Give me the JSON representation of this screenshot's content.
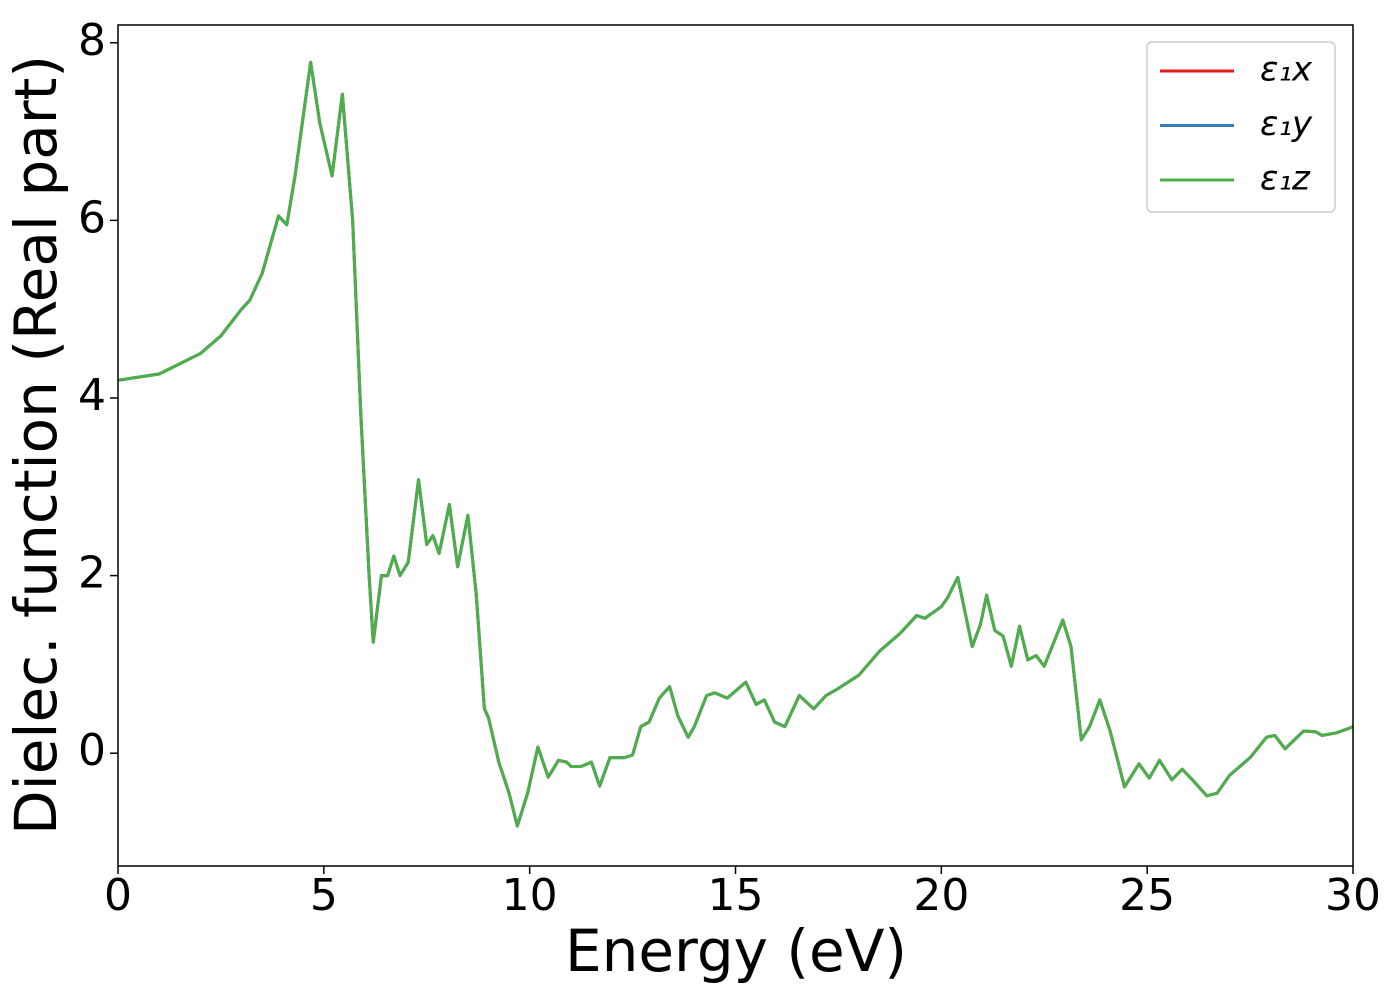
{
  "chart_data": {
    "type": "line",
    "xlabel": "Energy (eV)",
    "ylabel": "Dielec. function (Real part)",
    "xlim": [
      0,
      30
    ],
    "ylim": [
      -1.27,
      8.2
    ],
    "xticks": [
      0,
      5,
      10,
      15,
      20,
      25,
      30
    ],
    "yticks": [
      0,
      2,
      4,
      6,
      8
    ],
    "grid": false,
    "legend": "upper right",
    "x": [
      0,
      1,
      2,
      2.5,
      3,
      3.2,
      3.5,
      3.9,
      4.1,
      4.3,
      4.68,
      4.9,
      5.05,
      5.2,
      5.45,
      5.7,
      5.9,
      6.1,
      6.2,
      6.4,
      6.55,
      6.7,
      6.85,
      7.05,
      7.3,
      7.5,
      7.65,
      7.8,
      8.05,
      8.25,
      8.5,
      8.7,
      8.9,
      9,
      9.25,
      9.5,
      9.7,
      9.95,
      10.2,
      10.45,
      10.7,
      10.9,
      11,
      11.25,
      11.5,
      11.7,
      11.95,
      12.3,
      12.5,
      12.7,
      12.9,
      13.15,
      13.4,
      13.6,
      13.85,
      14,
      14.3,
      14.5,
      14.8,
      15.25,
      15.5,
      15.7,
      15.95,
      16.2,
      16.55,
      16.9,
      17.2,
      17.5,
      18,
      18.5,
      19,
      19.4,
      19.6,
      20,
      20.15,
      20.4,
      20.75,
      20.95,
      21.1,
      21.3,
      21.5,
      21.7,
      21.9,
      22.1,
      22.3,
      22.5,
      22.95,
      23.15,
      23.4,
      23.6,
      23.85,
      24.1,
      24.45,
      24.8,
      25.05,
      25.3,
      25.6,
      25.85,
      26.1,
      26.45,
      26.7,
      27,
      27.5,
      27.9,
      28.1,
      28.35,
      28.8,
      29.1,
      29.25,
      29.6,
      29.9,
      30
    ],
    "series": [
      {
        "name": "ε₁x",
        "color": "#e41a1c",
        "values": [
          4.2,
          4.27,
          4.5,
          4.7,
          5.0,
          5.1,
          5.4,
          6.05,
          5.95,
          6.5,
          7.78,
          7.1,
          6.8,
          6.5,
          7.42,
          6.0,
          3.8,
          2.0,
          1.25,
          2.0,
          2.0,
          2.22,
          2.0,
          2.15,
          3.08,
          2.35,
          2.45,
          2.25,
          2.8,
          2.1,
          2.68,
          1.8,
          0.5,
          0.4,
          -0.1,
          -0.45,
          -0.82,
          -0.45,
          0.07,
          -0.27,
          -0.08,
          -0.1,
          -0.15,
          -0.15,
          -0.1,
          -0.37,
          -0.05,
          -0.05,
          -0.02,
          0.3,
          0.35,
          0.62,
          0.75,
          0.42,
          0.18,
          0.3,
          0.65,
          0.68,
          0.62,
          0.8,
          0.55,
          0.6,
          0.35,
          0.3,
          0.65,
          0.5,
          0.65,
          0.73,
          0.88,
          1.15,
          1.35,
          1.55,
          1.52,
          1.65,
          1.75,
          1.98,
          1.2,
          1.45,
          1.78,
          1.38,
          1.32,
          0.98,
          1.43,
          1.05,
          1.1,
          0.98,
          1.5,
          1.2,
          0.15,
          0.3,
          0.6,
          0.25,
          -0.38,
          -0.12,
          -0.28,
          -0.08,
          -0.3,
          -0.18,
          -0.3,
          -0.48,
          -0.45,
          -0.25,
          -0.05,
          0.18,
          0.2,
          0.05,
          0.25,
          0.24,
          0.2,
          0.23,
          0.28,
          0.3
        ]
      },
      {
        "name": "ε₁y",
        "color": "#377eb8",
        "values": [
          4.2,
          4.27,
          4.5,
          4.7,
          5.0,
          5.1,
          5.4,
          6.05,
          5.95,
          6.5,
          7.78,
          7.1,
          6.8,
          6.5,
          7.42,
          6.0,
          3.8,
          2.0,
          1.25,
          2.0,
          2.0,
          2.22,
          2.0,
          2.15,
          3.08,
          2.35,
          2.45,
          2.25,
          2.8,
          2.1,
          2.68,
          1.8,
          0.5,
          0.4,
          -0.1,
          -0.45,
          -0.82,
          -0.45,
          0.07,
          -0.27,
          -0.08,
          -0.1,
          -0.15,
          -0.15,
          -0.1,
          -0.37,
          -0.05,
          -0.05,
          -0.02,
          0.3,
          0.35,
          0.62,
          0.75,
          0.42,
          0.18,
          0.3,
          0.65,
          0.68,
          0.62,
          0.8,
          0.55,
          0.6,
          0.35,
          0.3,
          0.65,
          0.5,
          0.65,
          0.73,
          0.88,
          1.15,
          1.35,
          1.55,
          1.52,
          1.65,
          1.75,
          1.98,
          1.2,
          1.45,
          1.78,
          1.38,
          1.32,
          0.98,
          1.43,
          1.05,
          1.1,
          0.98,
          1.5,
          1.2,
          0.15,
          0.3,
          0.6,
          0.25,
          -0.38,
          -0.12,
          -0.28,
          -0.08,
          -0.3,
          -0.18,
          -0.3,
          -0.48,
          -0.45,
          -0.25,
          -0.05,
          0.18,
          0.2,
          0.05,
          0.25,
          0.24,
          0.2,
          0.23,
          0.28,
          0.3
        ]
      },
      {
        "name": "ε₁z",
        "color": "#4daf4a",
        "values": [
          4.2,
          4.27,
          4.5,
          4.7,
          5.0,
          5.1,
          5.4,
          6.05,
          5.95,
          6.5,
          7.78,
          7.1,
          6.8,
          6.5,
          7.42,
          6.0,
          3.8,
          2.0,
          1.25,
          2.0,
          2.0,
          2.22,
          2.0,
          2.15,
          3.08,
          2.35,
          2.45,
          2.25,
          2.8,
          2.1,
          2.68,
          1.8,
          0.5,
          0.4,
          -0.1,
          -0.45,
          -0.82,
          -0.45,
          0.07,
          -0.27,
          -0.08,
          -0.1,
          -0.15,
          -0.15,
          -0.1,
          -0.37,
          -0.05,
          -0.05,
          -0.02,
          0.3,
          0.35,
          0.62,
          0.75,
          0.42,
          0.18,
          0.3,
          0.65,
          0.68,
          0.62,
          0.8,
          0.55,
          0.6,
          0.35,
          0.3,
          0.65,
          0.5,
          0.65,
          0.73,
          0.88,
          1.15,
          1.35,
          1.55,
          1.52,
          1.65,
          1.75,
          1.98,
          1.2,
          1.45,
          1.78,
          1.38,
          1.32,
          0.98,
          1.43,
          1.05,
          1.1,
          0.98,
          1.5,
          1.2,
          0.15,
          0.3,
          0.6,
          0.25,
          -0.38,
          -0.12,
          -0.28,
          -0.08,
          -0.3,
          -0.18,
          -0.3,
          -0.48,
          -0.45,
          -0.25,
          -0.05,
          0.18,
          0.2,
          0.05,
          0.25,
          0.24,
          0.2,
          0.23,
          0.28,
          0.3
        ]
      }
    ]
  }
}
